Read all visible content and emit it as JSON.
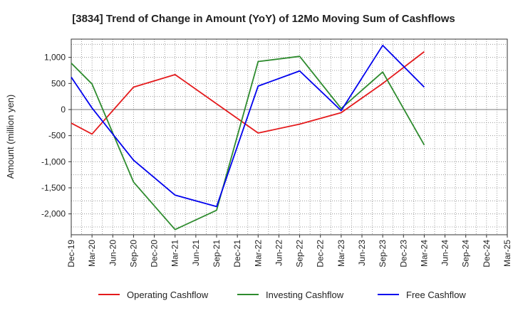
{
  "chart_data": {
    "type": "line",
    "title": "[3834]  Trend of Change in Amount (YoY) of 12Mo Moving Sum of Cashflows",
    "xlabel": "",
    "ylabel": "Amount (million yen)",
    "ylim": [
      -2400,
      1350
    ],
    "yticks": [
      1000,
      500,
      0,
      -500,
      -1000,
      -1500,
      -2000
    ],
    "ytick_labels": [
      "1,000",
      "500",
      "0",
      "-500",
      "-1,000",
      "-1,500",
      "-2,000"
    ],
    "categories": [
      "Dec-19",
      "Mar-20",
      "Jun-20",
      "Sep-20",
      "Dec-20",
      "Mar-21",
      "Jun-21",
      "Sep-21",
      "Dec-21",
      "Mar-22",
      "Jun-22",
      "Sep-22",
      "Dec-22",
      "Mar-23",
      "Jun-23",
      "Sep-23",
      "Dec-23",
      "Mar-24",
      "Jun-24",
      "Sep-24",
      "Dec-24",
      "Mar-25"
    ],
    "grid": true,
    "legend_position": "bottom",
    "series": [
      {
        "name": "Operating Cashflow",
        "color": "#e41a1c",
        "values": [
          -260,
          -470,
          null,
          430,
          null,
          670,
          null,
          null,
          null,
          -450,
          null,
          -280,
          null,
          -60,
          null,
          500,
          null,
          1110,
          null,
          null,
          null,
          null
        ]
      },
      {
        "name": "Investing Cashflow",
        "color": "#2e8b2e",
        "values": [
          890,
          490,
          null,
          -1390,
          null,
          -2300,
          null,
          -1930,
          null,
          920,
          null,
          1020,
          null,
          20,
          null,
          720,
          null,
          -680,
          null,
          null,
          null,
          null
        ]
      },
      {
        "name": "Free Cashflow",
        "color": "#0000ee",
        "values": [
          620,
          30,
          null,
          -970,
          null,
          -1640,
          null,
          -1860,
          null,
          450,
          null,
          740,
          null,
          -20,
          null,
          1230,
          null,
          430,
          null,
          null,
          null,
          null
        ]
      }
    ]
  }
}
